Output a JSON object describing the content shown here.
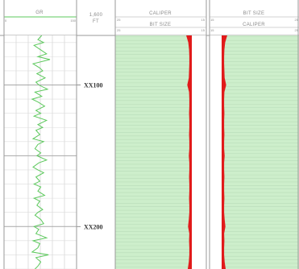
{
  "header": {
    "gr": {
      "title": "GR",
      "scale_min": "0",
      "scale_max": "150"
    },
    "depth": {
      "value": "1,600",
      "unit": "FT"
    },
    "caliper_left": {
      "title": "CALIPER",
      "subtitle": "BIT SIZE",
      "scale_min": "25",
      "scale_max": "15"
    },
    "caliper_right": {
      "title": "BIT SIZE",
      "subtitle": "CALIPER",
      "scale_min": "15",
      "scale_max": "25"
    }
  },
  "depth_labels": [
    "XX100",
    "XX200"
  ],
  "colors": {
    "gr_curve": "#5cc85c",
    "track_fill": "#cdeecb",
    "grid_line": "#b9dcb9",
    "washout": "#e11a1a",
    "track_border": "#9a9a9a"
  },
  "chart_data": {
    "type": "line",
    "title": "",
    "tracks": [
      {
        "name": "GR",
        "scale": [
          0,
          150
        ]
      },
      {
        "name": "CALIPER",
        "scale": [
          25,
          15
        ]
      },
      {
        "name": "BIT SIZE",
        "scale": [
          15,
          25
        ]
      }
    ],
    "depth_markers": [
      {
        "label": "XX100",
        "depth": 100
      },
      {
        "label": "XX200",
        "depth": 200
      }
    ],
    "depth_range": [
      65,
      230
    ],
    "series": [
      {
        "name": "GR",
        "x": [
          65,
          68,
          70,
          72,
          75,
          78,
          80,
          82,
          85,
          88,
          90,
          92,
          95,
          98,
          100,
          103,
          105,
          108,
          110,
          112,
          115,
          118,
          120,
          122,
          125,
          128,
          130,
          132,
          135,
          138,
          140,
          142,
          145,
          148,
          150,
          153,
          155,
          158,
          160,
          162,
          165,
          168,
          170,
          172,
          175,
          178,
          180,
          182,
          185,
          188,
          190,
          192,
          195,
          198,
          200,
          202,
          205,
          208,
          210,
          212,
          215,
          218,
          220,
          222,
          225,
          228,
          230
        ],
        "y": [
          78,
          70,
          82,
          62,
          75,
          88,
          70,
          95,
          60,
          74,
          80,
          68,
          85,
          66,
          72,
          90,
          64,
          78,
          58,
          70,
          84,
          66,
          76,
          62,
          88,
          70,
          80,
          66,
          74,
          60,
          82,
          70,
          64,
          76,
          68,
          88,
          72,
          60,
          70,
          82,
          66,
          74,
          62,
          76,
          70,
          84,
          62,
          74,
          68,
          80,
          70,
          64,
          76,
          82,
          62,
          72,
          66,
          88,
          60,
          74,
          70,
          58,
          92,
          66,
          76,
          70,
          64
        ]
      },
      {
        "name": "CALIPER",
        "x": [
          65,
          70,
          75,
          80,
          85,
          90,
          95,
          100,
          105,
          110,
          115,
          120,
          125,
          130,
          135,
          140,
          145,
          150,
          155,
          160,
          165,
          170,
          175,
          180,
          185,
          190,
          195,
          200,
          205,
          210,
          215,
          220,
          225,
          230
        ],
        "y": [
          10.2,
          9.4,
          9.1,
          9.0,
          9.0,
          9.1,
          9.2,
          9.8,
          9.1,
          9.0,
          9.0,
          9.1,
          9.0,
          9.0,
          9.1,
          9.0,
          9.0,
          9.2,
          9.0,
          9.0,
          9.1,
          9.0,
          9.0,
          9.1,
          9.0,
          9.0,
          9.2,
          9.5,
          9.0,
          9.1,
          9.0,
          9.0,
          9.2,
          9.6
        ]
      },
      {
        "name": "BIT SIZE",
        "x": [
          65,
          230
        ],
        "y": [
          8.5,
          8.5
        ]
      }
    ]
  }
}
